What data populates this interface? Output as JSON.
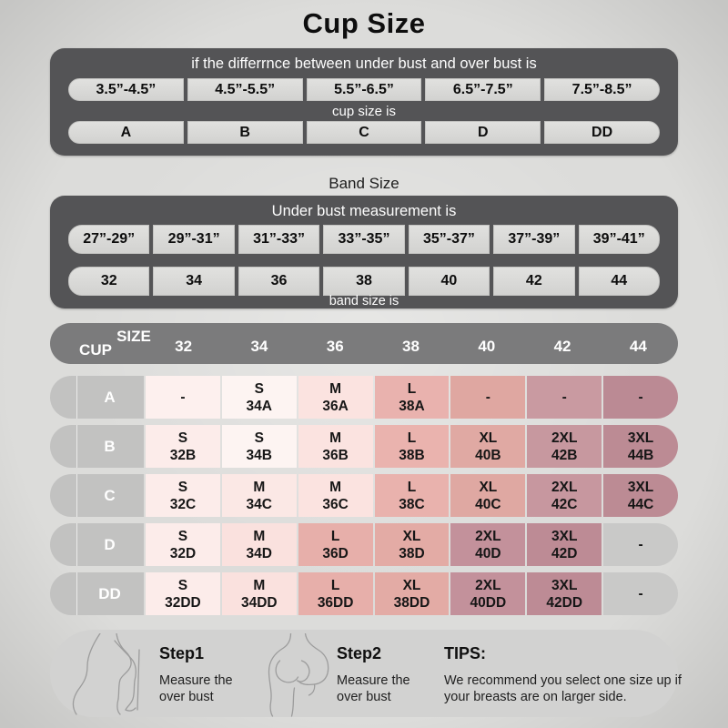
{
  "title": "Cup Size",
  "cup_section": {
    "header": "if the differrnce between under bust and over bust is",
    "ranges": [
      "3.5”-4.5”",
      "4.5”-5.5”",
      "5.5”-6.5”",
      "6.5”-7.5”",
      "7.5”-8.5”"
    ],
    "subheader": "cup size is",
    "cups": [
      "A",
      "B",
      "C",
      "D",
      "DD"
    ]
  },
  "band_section": {
    "title": "Band Size",
    "header": "Under bust measurement is",
    "ranges": [
      "27”-29”",
      "29”-31”",
      "31”-33”",
      "33”-35”",
      "35”-37”",
      "37”-39”",
      "39”-41”"
    ],
    "bands": [
      "32",
      "34",
      "36",
      "38",
      "40",
      "42",
      "44"
    ],
    "footer": "band size is"
  },
  "matrix": {
    "corner_top": "SIZE",
    "corner_bottom": "CUP",
    "columns": [
      "32",
      "34",
      "36",
      "38",
      "40",
      "42",
      "44"
    ],
    "rows": [
      {
        "cup": "A",
        "cells": [
          {
            "size": "",
            "code": "-",
            "bg": "#fdf0ee"
          },
          {
            "size": "S",
            "code": "34A",
            "bg": "#fdf4f2"
          },
          {
            "size": "M",
            "code": "36A",
            "bg": "#fbe3e0"
          },
          {
            "size": "L",
            "code": "38A",
            "bg": "#e9b2ae"
          },
          {
            "size": "",
            "code": "-",
            "bg": "#dfa7a1"
          },
          {
            "size": "",
            "code": "-",
            "bg": "#c99aa1"
          },
          {
            "size": "",
            "code": "-",
            "bg": "#bb8a94"
          }
        ]
      },
      {
        "cup": "B",
        "cells": [
          {
            "size": "S",
            "code": "32B",
            "bg": "#fcecea"
          },
          {
            "size": "S",
            "code": "34B",
            "bg": "#fdf4f2"
          },
          {
            "size": "M",
            "code": "36B",
            "bg": "#fbe3e0"
          },
          {
            "size": "L",
            "code": "38B",
            "bg": "#eab3ae"
          },
          {
            "size": "XL",
            "code": "40B",
            "bg": "#e0a9a3"
          },
          {
            "size": "2XL",
            "code": "42B",
            "bg": "#c7989f"
          },
          {
            "size": "3XL",
            "code": "44B",
            "bg": "#bc8b94"
          }
        ]
      },
      {
        "cup": "C",
        "cells": [
          {
            "size": "S",
            "code": "32C",
            "bg": "#fcecea"
          },
          {
            "size": "M",
            "code": "34C",
            "bg": "#fbe8e5"
          },
          {
            "size": "M",
            "code": "36C",
            "bg": "#fbe3e0"
          },
          {
            "size": "L",
            "code": "38C",
            "bg": "#e9b2ad"
          },
          {
            "size": "XL",
            "code": "40C",
            "bg": "#dfa8a2"
          },
          {
            "size": "2XL",
            "code": "42C",
            "bg": "#c7979f"
          },
          {
            "size": "3XL",
            "code": "44C",
            "bg": "#bc8b94"
          }
        ]
      },
      {
        "cup": "D",
        "cells": [
          {
            "size": "S",
            "code": "32D",
            "bg": "#fcecea"
          },
          {
            "size": "M",
            "code": "34D",
            "bg": "#fae1de"
          },
          {
            "size": "L",
            "code": "36D",
            "bg": "#e7afaa"
          },
          {
            "size": "XL",
            "code": "38D",
            "bg": "#e3aba5"
          },
          {
            "size": "2XL",
            "code": "40D",
            "bg": "#c3919b"
          },
          {
            "size": "3XL",
            "code": "42D",
            "bg": "#bd8b95"
          },
          {
            "size": "",
            "code": "-",
            "bg": "#c9c9c8"
          }
        ]
      },
      {
        "cup": "DD",
        "cells": [
          {
            "size": "S",
            "code": "32DD",
            "bg": "#fcecea"
          },
          {
            "size": "M",
            "code": "34DD",
            "bg": "#fae1de"
          },
          {
            "size": "L",
            "code": "36DD",
            "bg": "#e7afaa"
          },
          {
            "size": "XL",
            "code": "38DD",
            "bg": "#e3aba5"
          },
          {
            "size": "2XL",
            "code": "40DD",
            "bg": "#c3919b"
          },
          {
            "size": "3XL",
            "code": "42DD",
            "bg": "#bd8b95"
          },
          {
            "size": "",
            "code": "-",
            "bg": "#c9c9c8"
          }
        ]
      }
    ]
  },
  "footer": {
    "steps": [
      {
        "label": "Step1",
        "text": "Measure the over bust",
        "icon": "torso-measure-icon"
      },
      {
        "label": "Step2",
        "text": "Measure the over bust",
        "icon": "torso-measure-icon"
      }
    ],
    "tips_label": "TIPS:",
    "tips_text": "We recommend you select one size up if your breasts are on larger side."
  },
  "colors": {
    "page_bg": "#dcdcda",
    "panel_dark": "#545456",
    "button_bg": "#d8d8d6",
    "matrix_header_bg": "#7b7b7c",
    "row_label_bg": "#c2c2c1",
    "na_gray_bg": "#c9c9c8",
    "footer_bg": "#d2d2d1",
    "cell_light_pink": "#fcecea",
    "cell_dark_mauve": "#bc8b94"
  },
  "chart_data": [
    {
      "type": "table",
      "title": "Cup Size",
      "header": "if the differrnce between under bust and over bust is",
      "rows": [
        {
          "label": "difference",
          "values": [
            "3.5”-4.5”",
            "4.5”-5.5”",
            "5.5”-6.5”",
            "6.5”-7.5”",
            "7.5”-8.5”"
          ]
        },
        {
          "label": "cup size is",
          "values": [
            "A",
            "B",
            "C",
            "D",
            "DD"
          ]
        }
      ]
    },
    {
      "type": "table",
      "title": "Band Size",
      "header": "Under bust measurement is",
      "rows": [
        {
          "label": "under bust",
          "values": [
            "27”-29”",
            "29”-31”",
            "31”-33”",
            "33”-35”",
            "35”-37”",
            "37”-39”",
            "39”-41”"
          ]
        },
        {
          "label": "band size is",
          "values": [
            "32",
            "34",
            "36",
            "38",
            "40",
            "42",
            "44"
          ]
        }
      ]
    },
    {
      "type": "table",
      "title": "Size matrix (CUP x SIZE)",
      "columns": [
        "32",
        "34",
        "36",
        "38",
        "40",
        "42",
        "44"
      ],
      "rows": [
        {
          "label": "A",
          "values": [
            "-",
            "S 34A",
            "M 36A",
            "L 38A",
            "-",
            "-",
            "-"
          ]
        },
        {
          "label": "B",
          "values": [
            "S 32B",
            "S 34B",
            "M 36B",
            "L 38B",
            "XL 40B",
            "2XL 42B",
            "3XL 44B"
          ]
        },
        {
          "label": "C",
          "values": [
            "S 32C",
            "M 34C",
            "M 36C",
            "L 38C",
            "XL 40C",
            "2XL 42C",
            "3XL 44C"
          ]
        },
        {
          "label": "D",
          "values": [
            "S 32D",
            "M 34D",
            "L 36D",
            "XL 38D",
            "2XL 40D",
            "3XL 42D",
            "-"
          ]
        },
        {
          "label": "DD",
          "values": [
            "S 32DD",
            "M 34DD",
            "L 36DD",
            "XL 38DD",
            "2XL 40DD",
            "3XL 42DD",
            "-"
          ]
        }
      ]
    }
  ]
}
